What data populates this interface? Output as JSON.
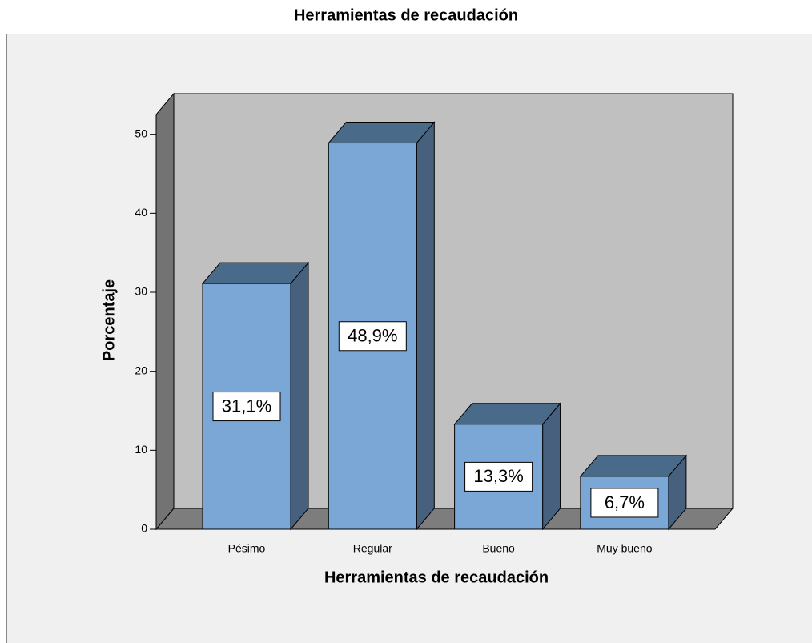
{
  "chart_data": {
    "type": "bar3d",
    "title": "Herramientas de recaudación",
    "xlabel": "Herramientas de recaudación",
    "ylabel": "Porcentaje",
    "categories": [
      "Pésimo",
      "Regular",
      "Bueno",
      "Muy bueno"
    ],
    "values": [
      31.1,
      48.9,
      13.3,
      6.7
    ],
    "value_labels": [
      "31,1%",
      "48,9%",
      "13,3%",
      "6,7%"
    ],
    "color": "#7aa7d6",
    "ylim": [
      0,
      52.5
    ],
    "yticks": [
      0,
      10,
      20,
      30,
      40,
      50
    ],
    "grid": false
  }
}
